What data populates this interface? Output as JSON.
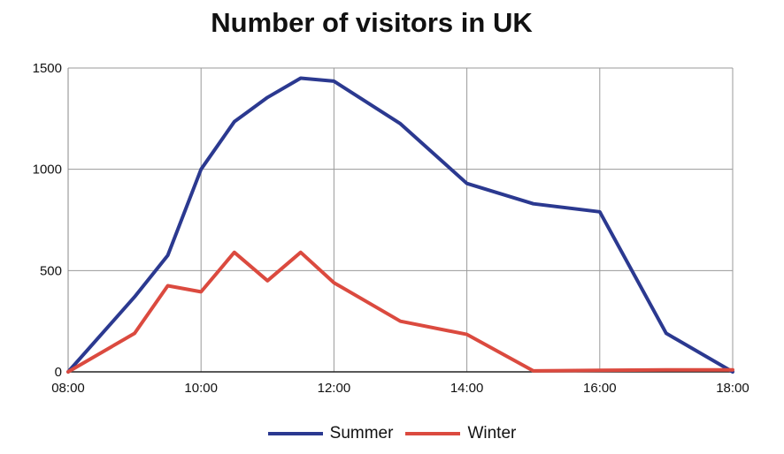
{
  "chart_data": {
    "type": "line",
    "title": "Number of visitors in UK",
    "xlabel": "",
    "ylabel": "",
    "x": [
      "08:00",
      "09:00",
      "09:30",
      "10:00",
      "10:30",
      "11:00",
      "11:30",
      "12:00",
      "13:00",
      "14:00",
      "15:00",
      "16:00",
      "17:00",
      "18:00"
    ],
    "x_tick_labels": [
      "08:00",
      "10:00",
      "12:00",
      "14:00",
      "16:00",
      "18:00"
    ],
    "y_tick_labels": [
      "0",
      "500",
      "1000",
      "1500"
    ],
    "ylim": [
      0,
      1500
    ],
    "grid": true,
    "legend_position": "bottom",
    "series": [
      {
        "name": "Summer",
        "color": "#2b3990",
        "values": [
          0,
          370,
          575,
          1000,
          1235,
          1355,
          1450,
          1435,
          1225,
          930,
          830,
          790,
          190,
          0
        ]
      },
      {
        "name": "Winter",
        "color": "#db4a3f",
        "values": [
          0,
          190,
          425,
          395,
          590,
          450,
          590,
          440,
          250,
          185,
          5,
          8,
          10,
          10
        ]
      }
    ]
  }
}
